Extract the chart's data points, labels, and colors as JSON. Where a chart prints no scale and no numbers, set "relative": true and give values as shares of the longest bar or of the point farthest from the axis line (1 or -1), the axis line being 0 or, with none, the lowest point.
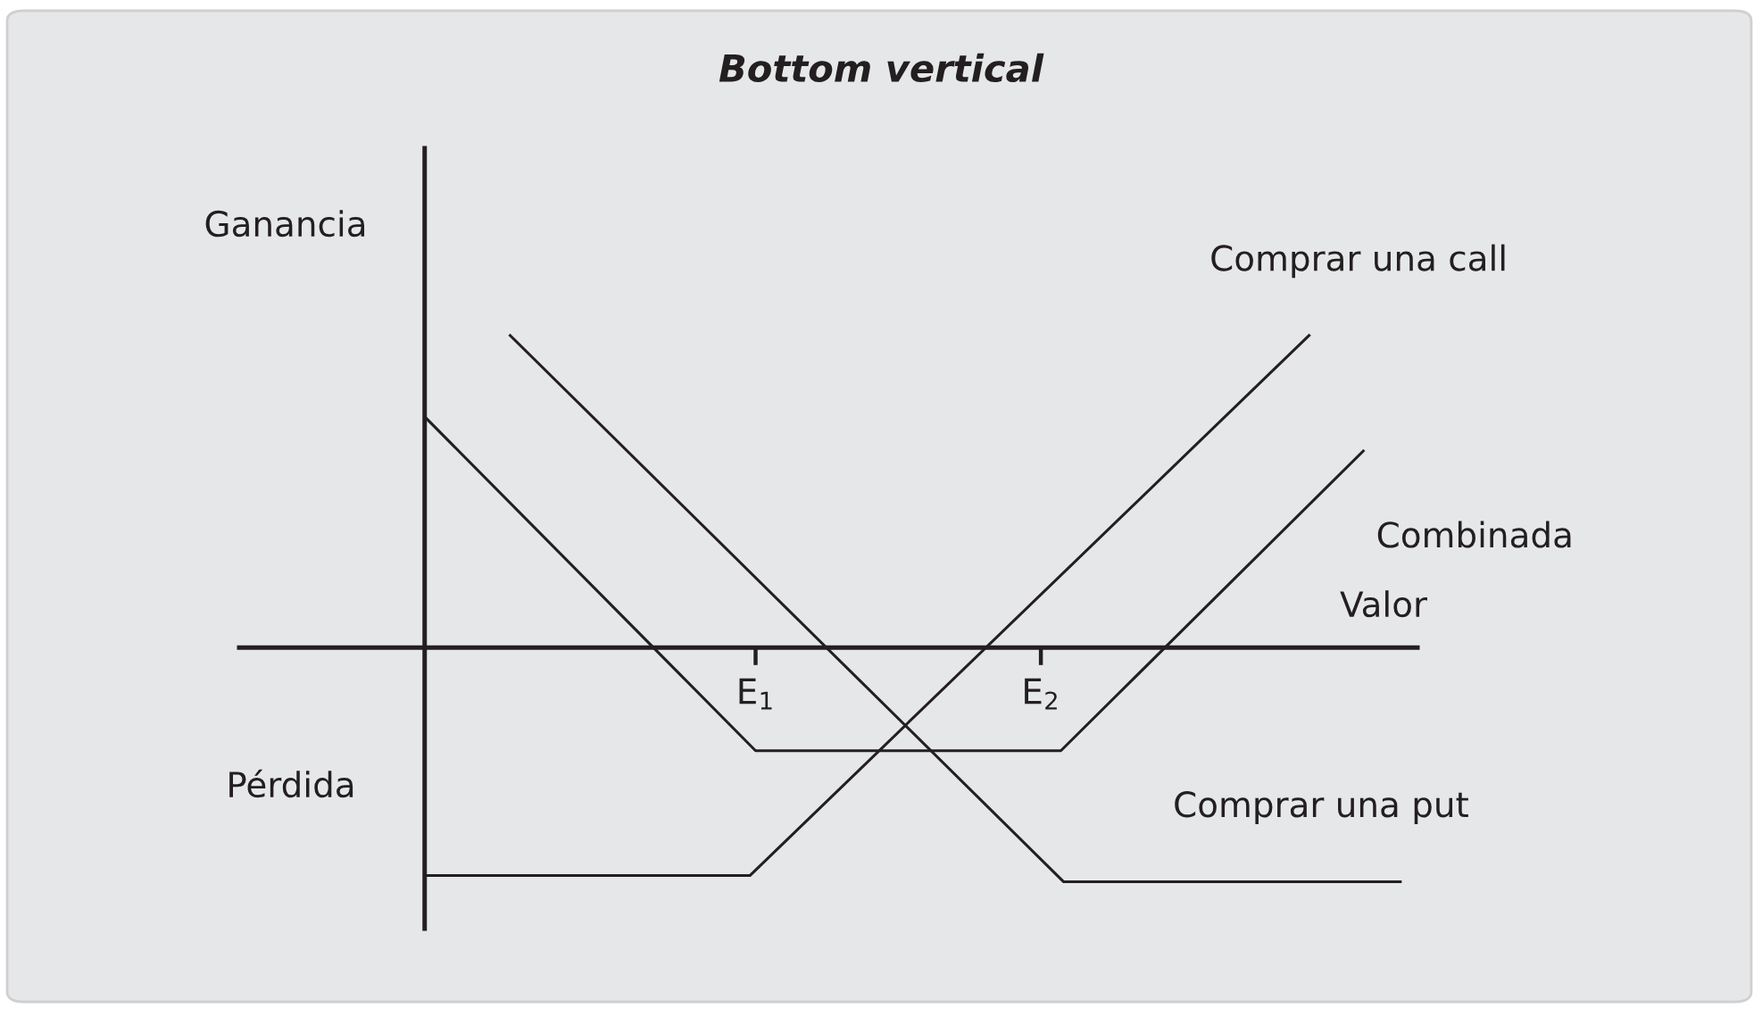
{
  "chart_data": {
    "type": "line",
    "title": "Bottom vertical",
    "xlabel": "Valor",
    "ylabel": "Ganancia",
    "annotations": [
      "Pérdida"
    ],
    "relative": true,
    "xlim": [
      -0.65,
      3.48
    ],
    "xticks": [
      {
        "value": 1.16,
        "label": "E$_{1}$"
      },
      {
        "value": 2.16,
        "label": "E$_{2}$"
      }
    ],
    "tick_labels": "x",
    "marker": "none",
    "line_style": "solid",
    "series": [
      {
        "name": "Comprar una call",
        "color": "#231f20",
        "x": [
          0,
          1.14,
          3.1
        ],
        "values": [
          -0.73,
          -0.73,
          1.0
        ]
      },
      {
        "name": "Combinada",
        "color": "#231f20",
        "x": [
          0,
          1.16,
          2.23,
          3.29
        ],
        "values": [
          0.74,
          -0.33,
          -0.33,
          0.63
        ]
      },
      {
        "name": "Comprar una put",
        "color": "#231f20",
        "x": [
          0.3,
          2.24,
          3.42
        ],
        "values": [
          1.0,
          -0.75,
          -0.75
        ]
      }
    ]
  }
}
